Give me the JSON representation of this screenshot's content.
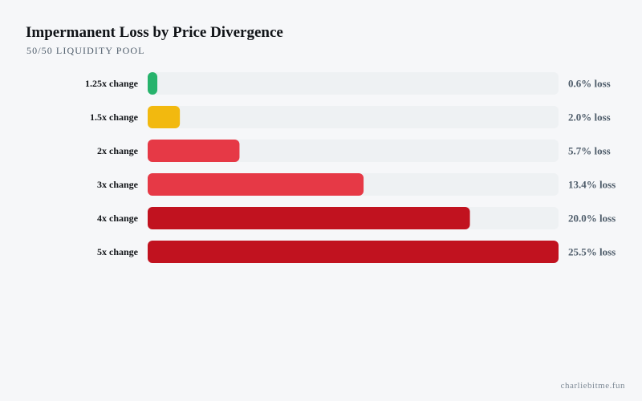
{
  "page": {
    "title": "Impermanent Loss by Price Divergence",
    "subtitle": "50/50 LIQUIDITY POOL",
    "watermark": "charliebitme.fun"
  },
  "colors": {
    "background": "#f6f7f9",
    "track": "#eef1f3",
    "low": "#27b36c",
    "medium": "#f2b90f",
    "high": "#e63946",
    "severe": "#c1121f",
    "category_label": "#111418",
    "value_label": "#4f5d6b"
  },
  "chart_data": {
    "type": "bar",
    "orientation": "horizontal",
    "categories": [
      "1.25x change",
      "1.5x change",
      "2x change",
      "3x change",
      "4x change",
      "5x change"
    ],
    "values": [
      0.6,
      2.0,
      5.7,
      13.4,
      20.0,
      25.5
    ],
    "value_labels": [
      "0.6% loss",
      "2.0% loss",
      "5.7% loss",
      "13.4% loss",
      "20.0% loss",
      "25.5% loss"
    ],
    "bar_colors": [
      "#27b36c",
      "#f2b90f",
      "#e63946",
      "#e63946",
      "#c1121f",
      "#c1121f"
    ],
    "xlim": [
      0,
      25.5
    ],
    "grid": false,
    "legend": "none"
  }
}
